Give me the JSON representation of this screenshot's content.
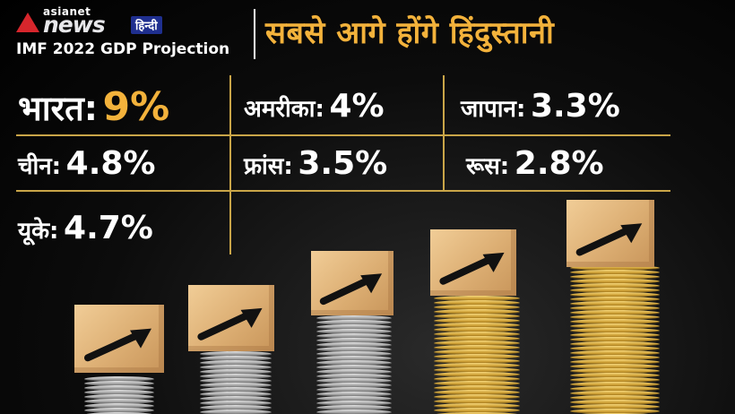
{
  "header": {
    "logo_brand": "asianet",
    "logo_news": "news",
    "logo_lang": "हिन्दी",
    "subtitle": "IMF 2022 GDP Projection",
    "headline": "सबसे आगे होंगे हिंदुस्तानी"
  },
  "accent_color": "#f3b23b",
  "projections": [
    {
      "country": "भारत:",
      "value": "9%"
    },
    {
      "country": "अमरीका:",
      "value": "4%"
    },
    {
      "country": "जापान:",
      "value": "3.3%"
    },
    {
      "country": "चीन:",
      "value": "4.8%"
    },
    {
      "country": "फ्रांस:",
      "value": "3.5%"
    },
    {
      "country": "रूस:",
      "value": "2.8%"
    },
    {
      "country": "यूके:",
      "value": "4.7%"
    }
  ],
  "illustration": {
    "icons": [
      "coin-stack-icon",
      "wooden-block-icon",
      "up-arrow-icon"
    ],
    "stacks": 5
  }
}
